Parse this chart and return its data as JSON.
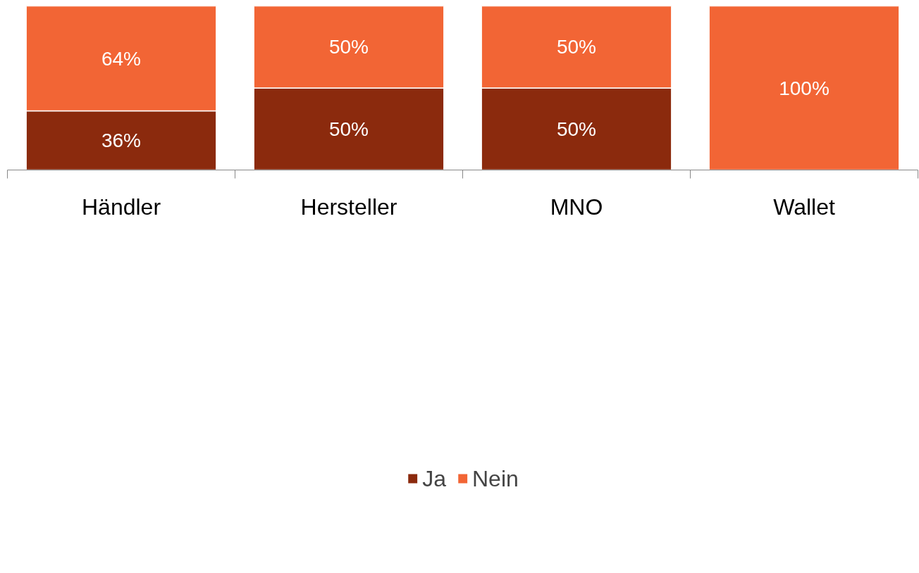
{
  "chart_data": {
    "type": "bar",
    "stacked": true,
    "categories": [
      "Händler",
      "Hersteller",
      "MNO",
      "Wallet"
    ],
    "series": [
      {
        "name": "Ja",
        "color": "#8b2a0d",
        "values": [
          36,
          50,
          50,
          0
        ],
        "value_labels": [
          "36%",
          "50%",
          "50%",
          null
        ]
      },
      {
        "name": "Nein",
        "color": "#f26535",
        "values": [
          64,
          50,
          50,
          100
        ],
        "value_labels": [
          "64%",
          "50%",
          "50%",
          "100%"
        ]
      }
    ],
    "legend": "bottom",
    "grid": false
  }
}
